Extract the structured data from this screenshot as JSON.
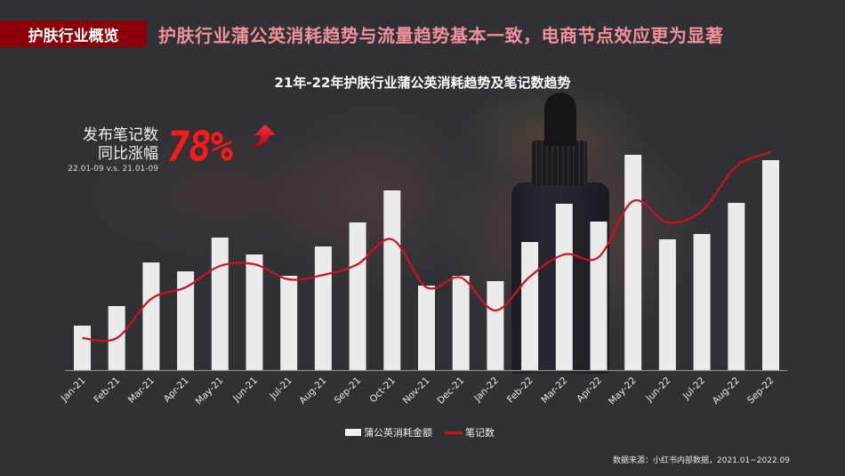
{
  "header": {
    "section_tag": "护肤行业概览",
    "headline": "护肤行业蒲公英消耗趋势与流量趋势基本一致，电商节点效应更为显著"
  },
  "kpi": {
    "label_line1": "发布笔记数",
    "label_line2": "同比涨幅",
    "period": "22.01-09 v.s. 21.01-09",
    "value": "78%",
    "icon": "up-arrow-icon",
    "color": "#ff1a1a"
  },
  "legend": {
    "bar_label": "蒲公英消耗金额",
    "line_label": "笔记数"
  },
  "footer": {
    "source": "数据来源：小红书内部数据，2021.01~2022.09"
  },
  "colors": {
    "bar": "#ebebeb",
    "line": "#d0101a",
    "banner": "#8b0008",
    "headline": "#f1909a"
  },
  "chart_data": {
    "type": "bar+line",
    "title": "21年-22年护肤行业蒲公英消耗趋势及笔记数趋势",
    "xlabel": "",
    "ylabel": "",
    "categories": [
      "Jan-21",
      "Feb-21",
      "Mar-21",
      "Apr-21",
      "May-21",
      "Jun-21",
      "Jul-21",
      "Aug-21",
      "Sep-21",
      "Oct-21",
      "Nov-21",
      "Dec-21",
      "Jan-22",
      "Feb-22",
      "Mar-22",
      "Apr-22",
      "May-22",
      "Jun-22",
      "Jul-22",
      "Aug-22",
      "Sep-22"
    ],
    "series": [
      {
        "name": "蒲公英消耗金额",
        "type": "bar",
        "values": [
          50,
          72,
          121,
          111,
          149,
          130,
          106,
          139,
          166,
          202,
          95,
          106,
          100,
          144,
          187,
          167,
          242,
          147,
          153,
          188,
          236
        ]
      },
      {
        "name": "笔记数",
        "type": "line",
        "values": [
          36,
          36,
          80,
          93,
          117,
          119,
          102,
          107,
          119,
          147,
          93,
          104,
          67,
          105,
          130,
          127,
          190,
          166,
          179,
          229,
          245
        ]
      }
    ],
    "ylim": [
      0,
      260
    ],
    "grid": false,
    "legend_position": "bottom",
    "annotations": [
      "发布笔记数 同比涨幅 78% (22.01-09 v.s. 21.01-09)"
    ]
  }
}
